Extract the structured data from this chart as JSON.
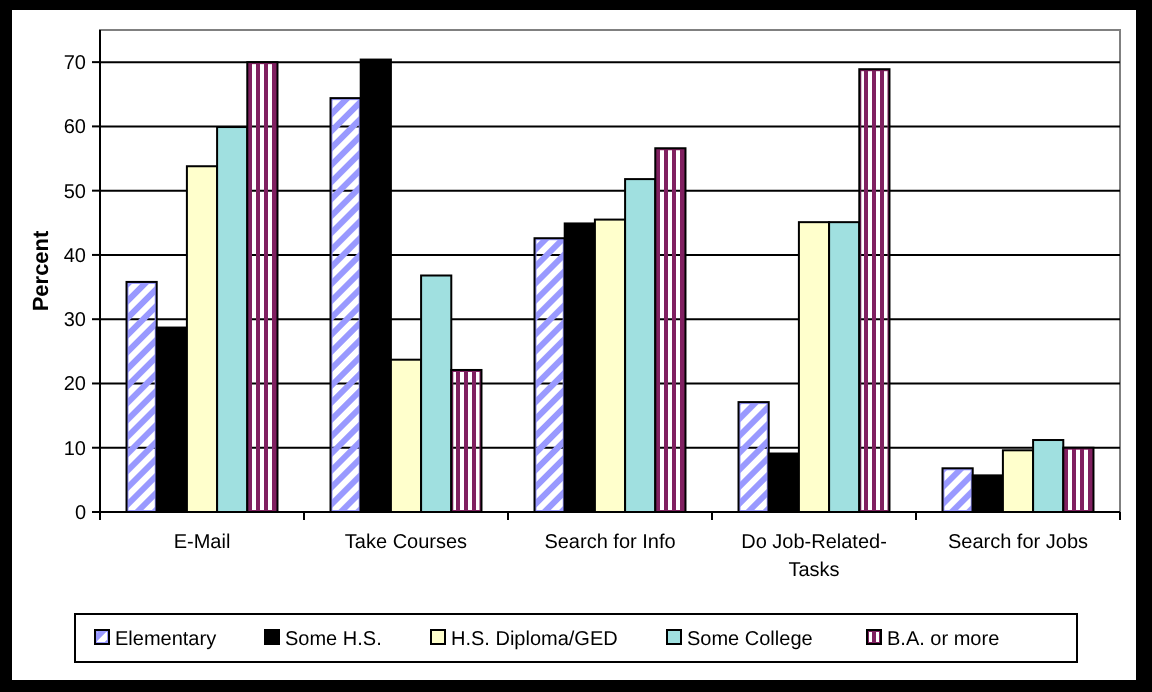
{
  "chart_data": {
    "type": "bar",
    "ylabel": "Percent",
    "categories": [
      "E-Mail",
      "Take Courses",
      "Search for Info",
      "Do Job-Related-Tasks",
      "Search for Jobs"
    ],
    "series": [
      {
        "name": "Elementary",
        "color": "#9999ff",
        "values": [
          35.8,
          64.4,
          42.6,
          17.1,
          6.8
        ]
      },
      {
        "name": "Some H.S.",
        "color": "#000000",
        "values": [
          28.7,
          70.4,
          44.9,
          9.1,
          5.7
        ]
      },
      {
        "name": "H.S. Diploma/GED",
        "color": "#ffffcc",
        "values": [
          53.8,
          23.7,
          45.5,
          45.1,
          9.6
        ]
      },
      {
        "name": "Some College",
        "color": "#a0e0e0",
        "values": [
          59.9,
          36.8,
          51.8,
          45.1,
          11.2
        ]
      },
      {
        "name": "B.A. or more",
        "color": "#802060",
        "values": [
          70,
          22.1,
          56.6,
          68.9,
          10
        ]
      }
    ],
    "ylim": [
      0,
      75
    ],
    "yticks": [
      0,
      10,
      20,
      30,
      40,
      50,
      60,
      70
    ],
    "grid": "y",
    "legend": "bottom"
  }
}
